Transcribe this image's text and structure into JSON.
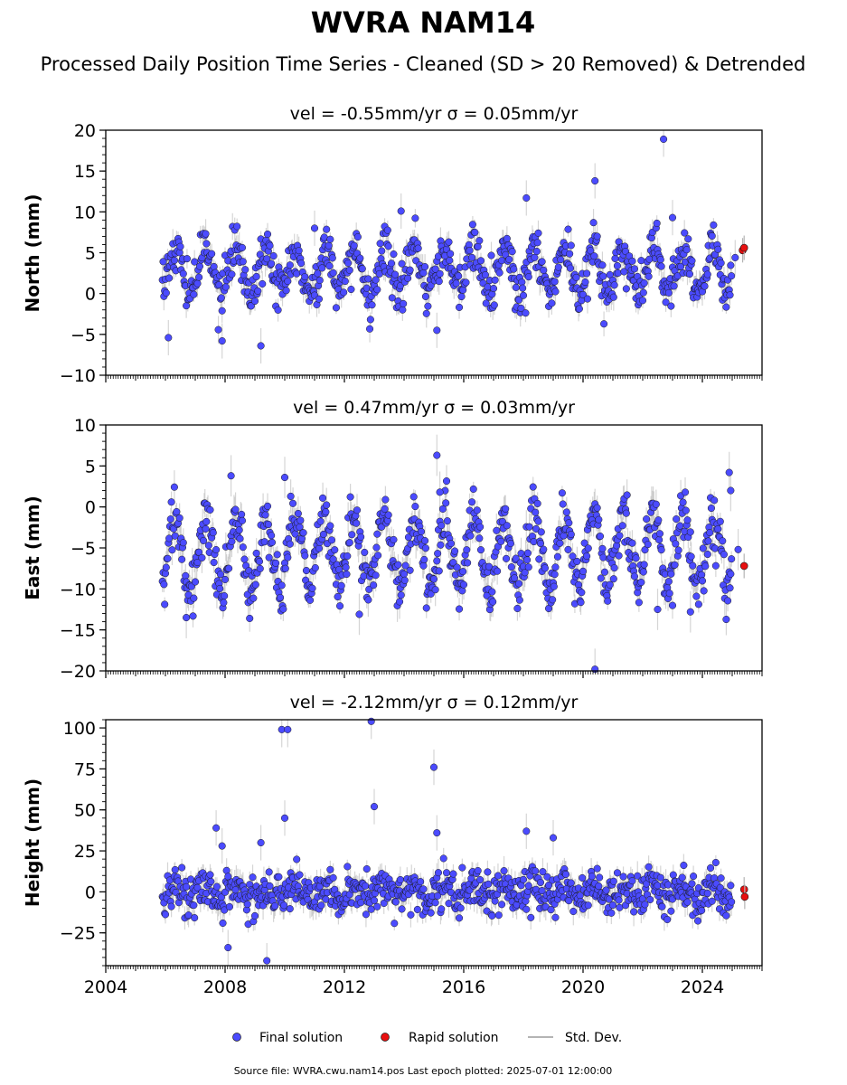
{
  "title": "WVRA NAM14",
  "subtitle": "Processed Daily Position Time Series - Cleaned (SD > 20 Removed) & Detrended",
  "footer": "Source file: WVRA.cwu.nam14.pos  Last epoch plotted: 2025-07-01 12:00:00",
  "colors": {
    "final": "#4b4bff",
    "rapid": "#e81010",
    "std": "#b4b4b4",
    "edge": "#1a1a1a"
  },
  "legend": {
    "final": "Final solution",
    "rapid": "Rapid solution",
    "std": "Std. Dev."
  },
  "chart_data": [
    {
      "type": "scatter",
      "panel_title": "vel = -0.55mm/yr   σ = 0.05mm/yr",
      "ylabel": "North (mm)",
      "ylim": [
        -10,
        20
      ],
      "yticks": [
        -10,
        -5,
        0,
        5,
        10,
        15,
        20
      ],
      "xlim": [
        2004.0,
        2026.0
      ],
      "xticks": [
        2004,
        2008,
        2012,
        2016,
        2020,
        2024
      ],
      "show_xticklabels": false,
      "series": [
        {
          "name": "Final solution",
          "model": {
            "span": [
              2005.9,
              2025.0
            ],
            "offset": 2.8,
            "amplitude": 2.8,
            "noise": 1.4,
            "err": 1.2
          }
        },
        {
          "name": "Rapid solution",
          "x": [
            2025.35,
            2025.4
          ],
          "y": [
            5.3,
            5.6
          ]
        }
      ],
      "outliers": {
        "x": [
          2006.1,
          2007.9,
          2009.2,
          2011.0,
          2013.9,
          2015.1,
          2018.1,
          2020.4,
          2022.7,
          2023.0,
          2025.1
        ],
        "y": [
          -5.4,
          -5.8,
          -6.4,
          8.0,
          10.1,
          -4.5,
          11.7,
          13.8,
          18.9,
          9.3,
          4.4
        ]
      }
    },
    {
      "type": "scatter",
      "panel_title": "vel = 0.47mm/yr   σ = 0.03mm/yr",
      "ylabel": "East (mm)",
      "ylim": [
        -20,
        10
      ],
      "yticks": [
        -20,
        -15,
        -10,
        -5,
        0,
        5,
        10
      ],
      "xlim": [
        2004.0,
        2026.0
      ],
      "xticks": [
        2004,
        2008,
        2012,
        2016,
        2020,
        2024
      ],
      "show_xticklabels": false,
      "series": [
        {
          "name": "Final solution",
          "model": {
            "span": [
              2005.9,
              2025.0
            ],
            "offset": -5.5,
            "amplitude": 4.4,
            "noise": 1.8,
            "err": 1.4
          }
        },
        {
          "name": "Rapid solution",
          "x": [
            2025.4
          ],
          "y": [
            -7.2
          ]
        }
      ],
      "outliers": {
        "x": [
          2006.7,
          2008.2,
          2010.0,
          2012.5,
          2015.1,
          2015.2,
          2020.4,
          2022.5,
          2023.6,
          2024.9,
          2024.95,
          2025.2
        ],
        "y": [
          -13.5,
          3.8,
          3.6,
          -13.1,
          6.3,
          1.8,
          -19.8,
          -12.5,
          -12.8,
          4.2,
          2.0,
          -5.2
        ]
      }
    },
    {
      "type": "scatter",
      "panel_title": "vel = -2.12mm/yr   σ = 0.12mm/yr",
      "ylabel": "Height (mm)",
      "ylim": [
        -45,
        105
      ],
      "yticks": [
        -25,
        0,
        25,
        50,
        75,
        100
      ],
      "xlim": [
        2004.0,
        2026.0
      ],
      "xticks": [
        2004,
        2008,
        2012,
        2016,
        2020,
        2024
      ],
      "show_xticklabels": true,
      "series": [
        {
          "name": "Final solution",
          "model": {
            "span": [
              2005.9,
              2025.0
            ],
            "offset": 0.0,
            "amplitude": 4.0,
            "noise": 6.0,
            "err": 6.0
          }
        },
        {
          "name": "Rapid solution",
          "x": [
            2025.4,
            2025.42
          ],
          "y": [
            1.5,
            -3.0
          ]
        }
      ],
      "outliers": {
        "x": [
          2007.7,
          2007.9,
          2008.1,
          2009.2,
          2009.9,
          2010.0,
          2010.1,
          2012.9,
          2013.0,
          2015.0,
          2015.1,
          2018.1,
          2019.0,
          2009.4
        ],
        "y": [
          39,
          28,
          -34,
          30,
          99,
          45,
          99,
          104,
          52,
          76,
          36,
          37,
          33,
          -42
        ]
      }
    }
  ]
}
